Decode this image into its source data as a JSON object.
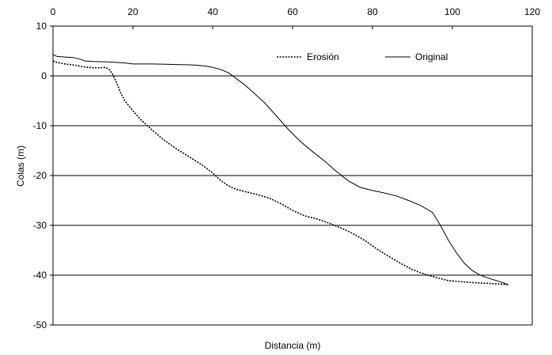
{
  "chart_data": {
    "type": "line",
    "title": "",
    "xlabel": "Distancia (m)",
    "ylabel": "Colas (m)",
    "xlim": [
      0,
      120
    ],
    "ylim": [
      -50,
      10
    ],
    "x_ticks": [
      0,
      20,
      40,
      60,
      80,
      100,
      120
    ],
    "y_ticks": [
      10,
      0,
      -10,
      -20,
      -30,
      -40,
      -50
    ],
    "x_axis_position": "top",
    "grid": "horizontal",
    "legend_position": "top-right",
    "series": [
      {
        "name": "Erosión",
        "style": "dotted",
        "color": "#000000",
        "x": [
          0,
          1,
          3,
          5,
          7,
          9,
          11,
          13,
          14,
          15,
          16,
          17,
          18,
          20,
          22,
          25,
          28,
          31,
          34,
          37,
          40,
          42,
          44,
          46,
          48,
          51,
          54,
          57,
          60,
          63,
          66,
          69,
          72,
          75,
          78,
          81,
          84,
          87,
          90,
          93,
          96,
          99,
          102,
          105,
          108,
          110,
          112,
          114
        ],
        "y": [
          3,
          2.7,
          2.4,
          2.2,
          1.9,
          1.7,
          1.6,
          1.7,
          1.4,
          0.2,
          -1.5,
          -3.5,
          -5,
          -7,
          -8.8,
          -11,
          -13,
          -14.7,
          -16.2,
          -17.7,
          -19.5,
          -21,
          -22.1,
          -22.8,
          -23.2,
          -23.8,
          -24.5,
          -25.6,
          -27,
          -28.1,
          -28.7,
          -29.5,
          -30.5,
          -31.6,
          -33,
          -34.7,
          -36.2,
          -37.6,
          -38.9,
          -39.8,
          -40.5,
          -41.1,
          -41.3,
          -41.5,
          -41.6,
          -41.7,
          -41.8,
          -41.9
        ]
      },
      {
        "name": "Original",
        "style": "solid",
        "color": "#000000",
        "x": [
          0,
          1,
          3,
          5,
          7,
          8,
          10,
          14,
          18,
          20,
          25,
          30,
          35,
          38,
          40,
          42,
          44,
          46,
          48,
          50,
          53,
          56,
          59,
          62,
          65,
          68,
          71,
          74,
          77,
          80,
          83,
          86,
          89,
          92,
          95,
          97,
          99,
          101,
          103,
          105,
          107,
          109,
          111,
          113,
          114
        ],
        "y": [
          4.3,
          3.9,
          3.8,
          3.7,
          3.3,
          3,
          2.9,
          2.8,
          2.6,
          2.4,
          2.4,
          2.3,
          2.2,
          2,
          1.7,
          1.3,
          0.6,
          -0.6,
          -1.8,
          -3.2,
          -5.4,
          -8.1,
          -10.8,
          -13.2,
          -15.2,
          -17.1,
          -19.2,
          -21.1,
          -22.4,
          -23,
          -23.5,
          -24.1,
          -25,
          -26,
          -27.4,
          -30,
          -33,
          -35.5,
          -37.6,
          -39.1,
          -40,
          -40.6,
          -41.1,
          -41.6,
          -41.9
        ]
      }
    ]
  }
}
